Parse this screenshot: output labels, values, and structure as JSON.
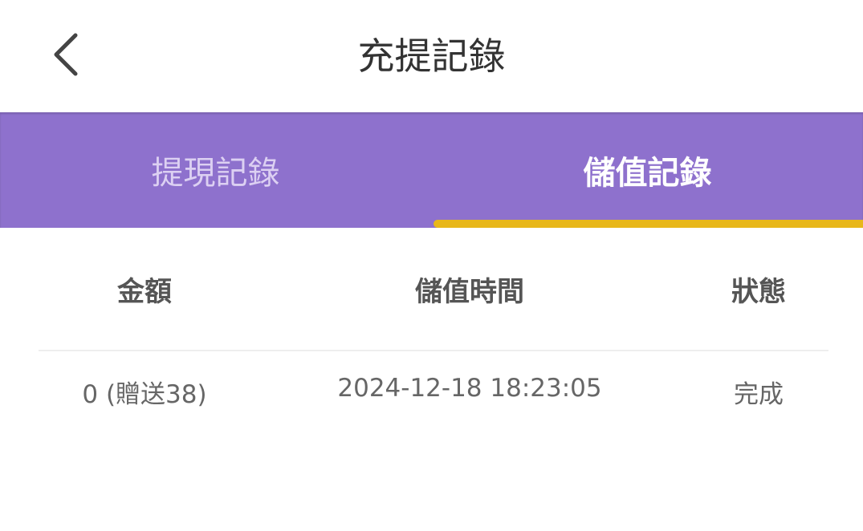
{
  "header": {
    "title": "充提記錄",
    "back_icon": "chevron-left-icon"
  },
  "tabs": [
    {
      "label": "提現記錄",
      "active": false
    },
    {
      "label": "儲值記錄",
      "active": true
    }
  ],
  "colors": {
    "tab_bar": "#8e71cd",
    "indicator": "#e8b71a"
  },
  "table": {
    "columns": [
      "金額",
      "儲值時間",
      "狀態"
    ],
    "rows": [
      {
        "amount": "0 (贈送38)",
        "time": "2024-12-18 18:23:05",
        "status": "完成"
      }
    ]
  }
}
